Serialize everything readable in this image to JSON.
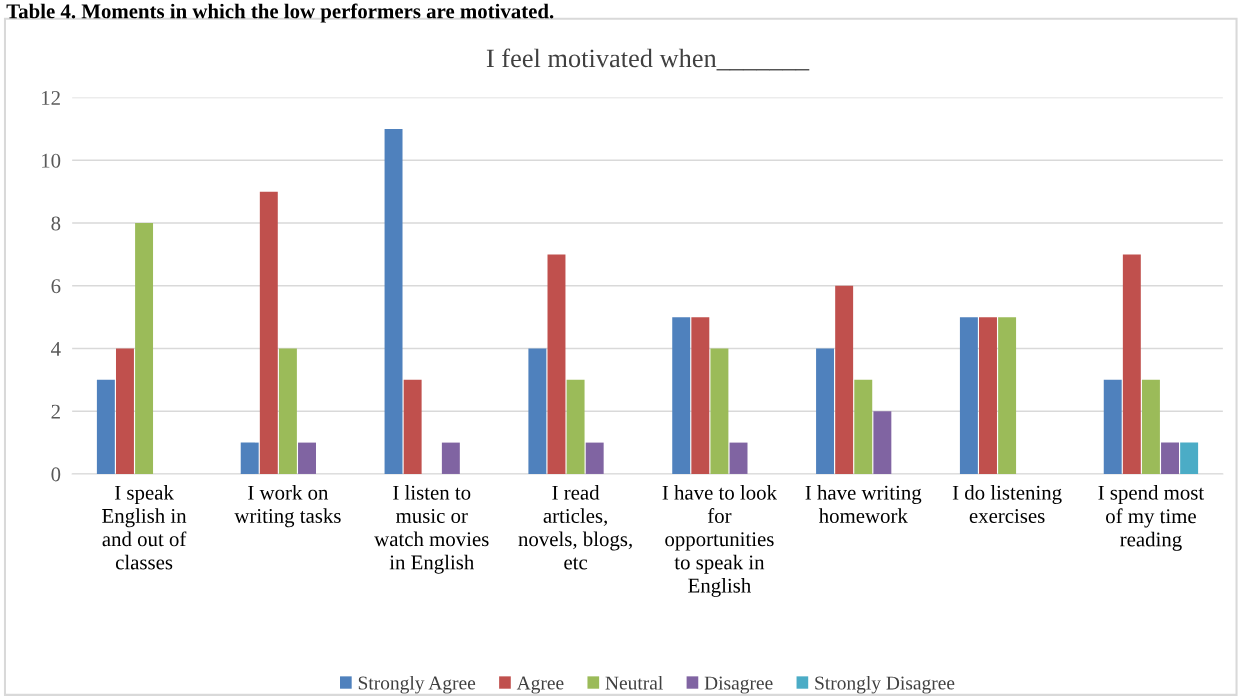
{
  "chart_data": {
    "type": "bar",
    "title": "I feel motivated when_______",
    "categories": [
      "I speak\nEnglish in\nand out of\nclasses",
      "I work on\nwriting tasks",
      "I listen to\nmusic or\nwatch movies\nin English",
      "I read\narticles,\nnovels, blogs,\netc",
      "I have to look\nfor\nopportunities\nto speak in\nEnglish",
      "I have writing\nhomework",
      "I do listening\nexercises",
      "I spend most\nof my time\nreading"
    ],
    "series": [
      {
        "name": "Strongly Agree",
        "color": "#4f81bd",
        "values": [
          3,
          1,
          11,
          4,
          5,
          4,
          5,
          3
        ]
      },
      {
        "name": "Agree",
        "color": "#c0504d",
        "values": [
          4,
          9,
          3,
          7,
          5,
          6,
          5,
          7
        ]
      },
      {
        "name": "Neutral",
        "color": "#9bbb59",
        "values": [
          8,
          4,
          0,
          3,
          4,
          3,
          5,
          3
        ]
      },
      {
        "name": "Disagree",
        "color": "#8064a2",
        "values": [
          0,
          1,
          1,
          1,
          1,
          2,
          0,
          1
        ]
      },
      {
        "name": "Strongly Disagree",
        "color": "#4bacc6",
        "values": [
          0,
          0,
          0,
          0,
          0,
          0,
          0,
          1
        ]
      }
    ],
    "ylim": [
      0,
      12
    ],
    "yticks": [
      0,
      2,
      4,
      6,
      8,
      10,
      12
    ],
    "grid": "y",
    "legend": "bottom",
    "annotations": [
      "Table 4. Moments in which the low performers are motivated."
    ]
  }
}
